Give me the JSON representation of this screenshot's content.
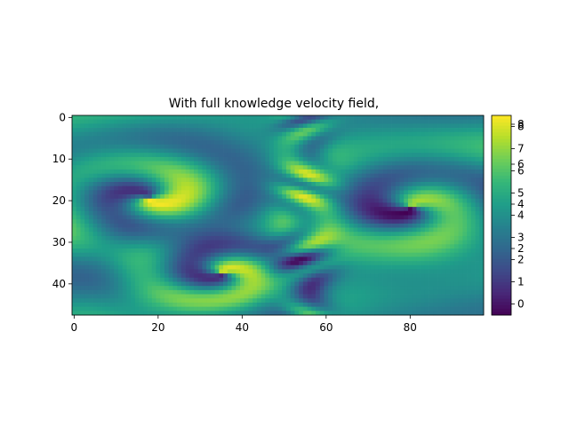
{
  "chart_data": {
    "type": "heatmap",
    "title": "With full knowledge velocity field,",
    "xlabel": "",
    "ylabel": "",
    "grid": false,
    "colormap": "viridis",
    "grid_size": {
      "cols": 98,
      "rows": 48
    },
    "x_ticks": [
      0,
      20,
      40,
      60,
      80
    ],
    "y_ticks": [
      0,
      10,
      20,
      30,
      40
    ],
    "colorbar": {
      "range": [
        -0.5,
        8.5
      ],
      "tick_values": [
        0,
        1,
        2,
        2.5,
        3,
        4,
        4.5,
        5,
        6,
        6.3,
        7,
        8,
        8.1
      ],
      "tick_labels": [
        "0",
        "1",
        "2",
        "2",
        "3",
        "4",
        "4",
        "5",
        "6",
        "6",
        "7",
        "8",
        "8"
      ]
    }
  }
}
